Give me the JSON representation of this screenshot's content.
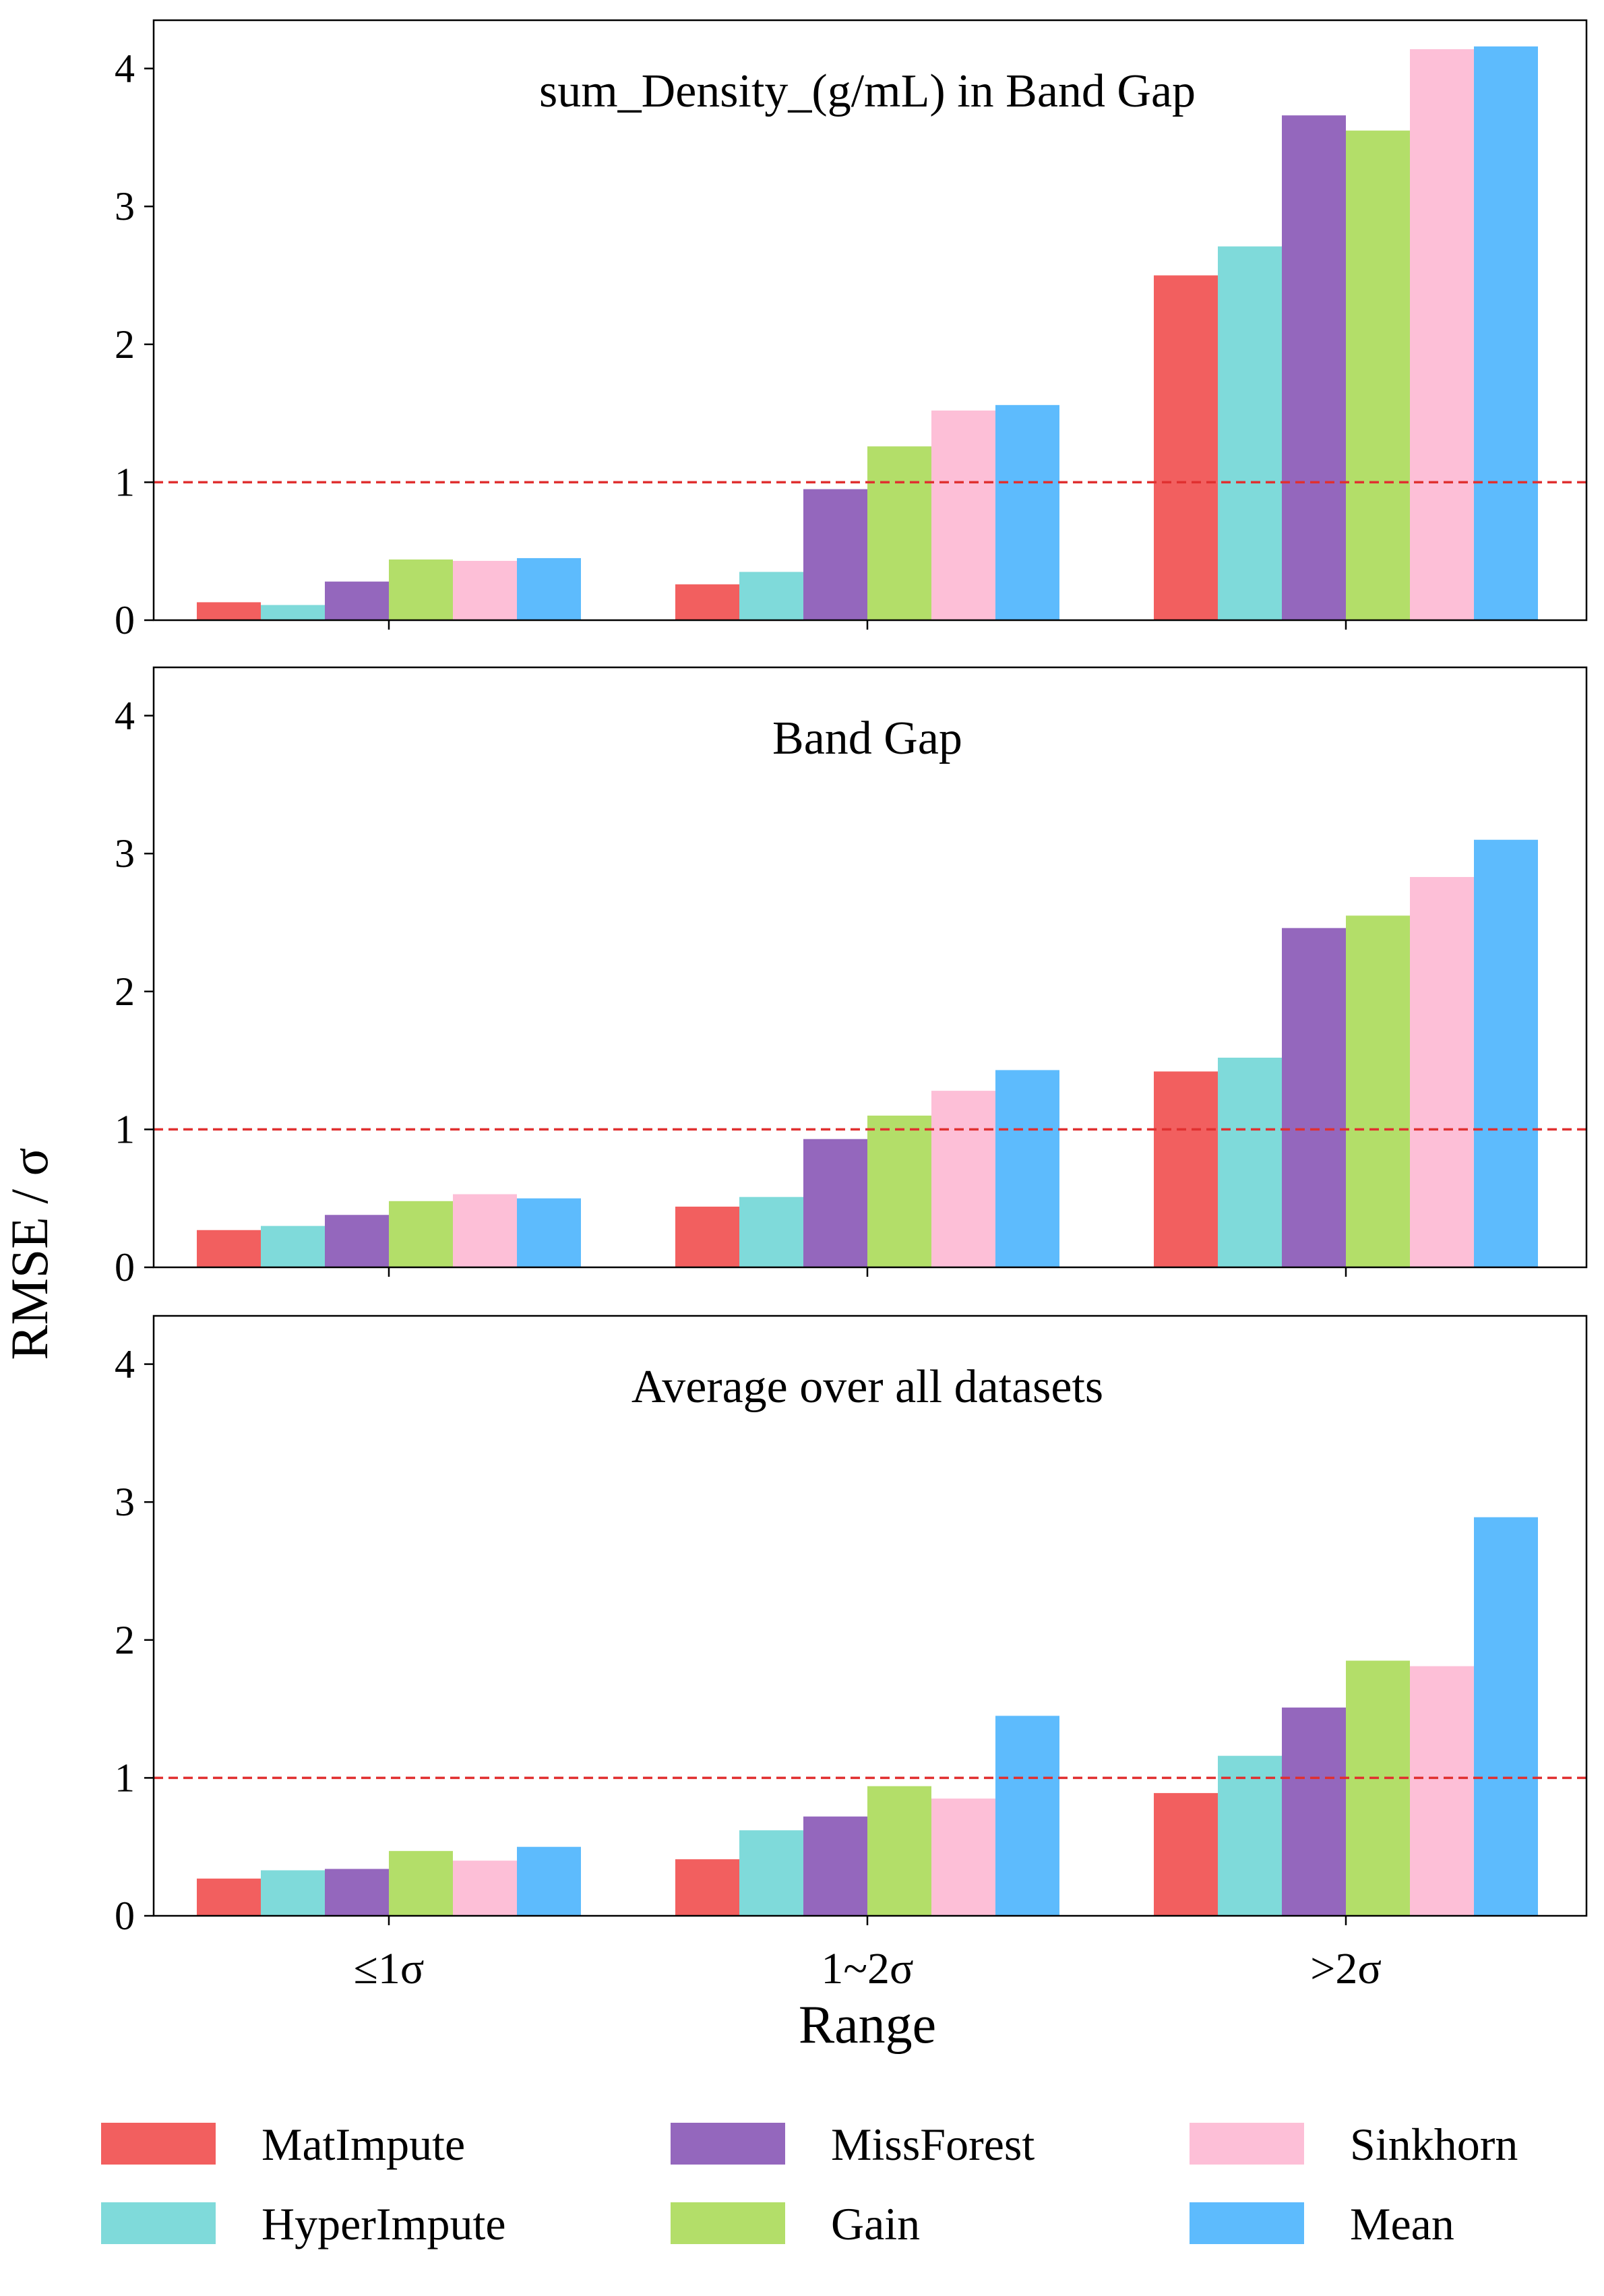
{
  "figure": {
    "ylabel": "RMSE / σ",
    "xlabel": "Range"
  },
  "chart_data": [
    {
      "type": "bar",
      "title": "sum_Density_(g/mL) in Band Gap",
      "categories": [
        "≤1σ",
        "1~2σ",
        ">2σ"
      ],
      "ylim": [
        0,
        4.35
      ],
      "yticks": [
        "0",
        "1",
        "2",
        "3",
        "4"
      ],
      "reference_line": 1.0,
      "series": [
        {
          "name": "MatImpute",
          "values": [
            0.13,
            0.26,
            2.5
          ]
        },
        {
          "name": "HyperImpute",
          "values": [
            0.11,
            0.35,
            2.71
          ]
        },
        {
          "name": "MissForest",
          "values": [
            0.28,
            0.95,
            3.66
          ]
        },
        {
          "name": "Gain",
          "values": [
            0.44,
            1.26,
            3.55
          ]
        },
        {
          "name": "Sinkhorn",
          "values": [
            0.43,
            1.52,
            4.14
          ]
        },
        {
          "name": "Mean",
          "values": [
            0.45,
            1.56,
            4.16
          ]
        }
      ]
    },
    {
      "type": "bar",
      "title": "Band Gap",
      "categories": [
        "≤1σ",
        "1~2σ",
        ">2σ"
      ],
      "ylim": [
        0,
        4.35
      ],
      "yticks": [
        "0",
        "1",
        "2",
        "3",
        "4"
      ],
      "reference_line": 1.0,
      "series": [
        {
          "name": "MatImpute",
          "values": [
            0.27,
            0.44,
            1.42
          ]
        },
        {
          "name": "HyperImpute",
          "values": [
            0.3,
            0.51,
            1.52
          ]
        },
        {
          "name": "MissForest",
          "values": [
            0.38,
            0.93,
            2.46
          ]
        },
        {
          "name": "Gain",
          "values": [
            0.48,
            1.1,
            2.55
          ]
        },
        {
          "name": "Sinkhorn",
          "values": [
            0.53,
            1.28,
            2.83
          ]
        },
        {
          "name": "Mean",
          "values": [
            0.5,
            1.43,
            3.1
          ]
        }
      ]
    },
    {
      "type": "bar",
      "title": "Average over all datasets",
      "categories": [
        "≤1σ",
        "1~2σ",
        ">2σ"
      ],
      "ylim": [
        0,
        4.35
      ],
      "yticks": [
        "0",
        "1",
        "2",
        "3",
        "4"
      ],
      "reference_line": 1.0,
      "series": [
        {
          "name": "MatImpute",
          "values": [
            0.27,
            0.41,
            0.89
          ]
        },
        {
          "name": "HyperImpute",
          "values": [
            0.33,
            0.62,
            1.16
          ]
        },
        {
          "name": "MissForest",
          "values": [
            0.34,
            0.72,
            1.51
          ]
        },
        {
          "name": "Gain",
          "values": [
            0.47,
            0.94,
            1.85
          ]
        },
        {
          "name": "Sinkhorn",
          "values": [
            0.4,
            0.85,
            1.81
          ]
        },
        {
          "name": "Mean",
          "values": [
            0.5,
            1.45,
            2.89
          ]
        }
      ]
    }
  ],
  "legend": {
    "placement": "bottom",
    "items": [
      {
        "name": "MatImpute",
        "color": "#F25F5F"
      },
      {
        "name": "HyperImpute",
        "color": "#7FDADA"
      },
      {
        "name": "MissForest",
        "color": "#9467BD"
      },
      {
        "name": "Gain",
        "color": "#B3DE69"
      },
      {
        "name": "Sinkhorn",
        "color": "#FDBFD7"
      },
      {
        "name": "Mean",
        "color": "#5DBBFD"
      }
    ]
  },
  "colors": {
    "reference_line": "#E03030"
  }
}
